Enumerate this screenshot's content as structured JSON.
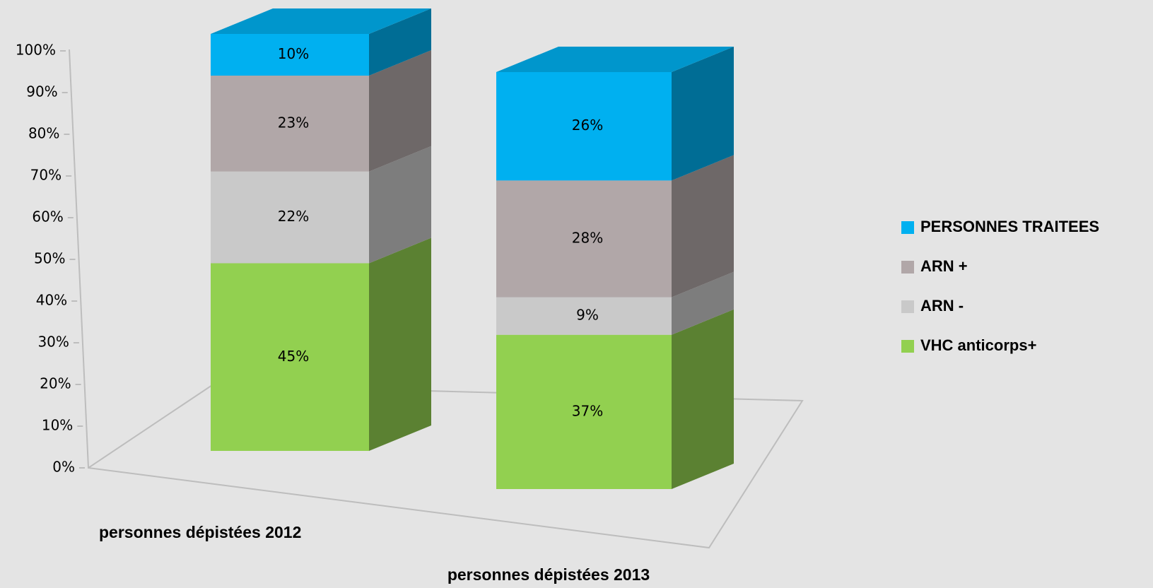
{
  "chart_data": {
    "type": "bar3d_stacked",
    "categories": [
      "personnes dépistées 2012",
      "personnes dépistées 2013"
    ],
    "series": [
      {
        "name": "VHC anticorps+",
        "color": "#92d050",
        "values": [
          45,
          37
        ],
        "value_labels": [
          "45%",
          "37%"
        ]
      },
      {
        "name": "ARN -",
        "color": "#c9c9c9",
        "values": [
          22,
          9
        ],
        "value_labels": [
          "22%",
          "9%"
        ]
      },
      {
        "name": "ARN +",
        "color": "#b1a7a8",
        "values": [
          23,
          28
        ],
        "value_labels": [
          "23%",
          "28%"
        ]
      },
      {
        "name": "PERSONNES TRAITEES",
        "color": "#00b0f0",
        "values": [
          10,
          26
        ],
        "value_labels": [
          "10%",
          "26%"
        ]
      }
    ],
    "ylim": [
      0,
      100
    ],
    "yticks": [
      {
        "value": 0,
        "label": "0%"
      },
      {
        "value": 10,
        "label": "10%"
      },
      {
        "value": 20,
        "label": "20%"
      },
      {
        "value": 30,
        "label": "30%"
      },
      {
        "value": 40,
        "label": "40%"
      },
      {
        "value": 50,
        "label": "50%"
      },
      {
        "value": 60,
        "label": "60%"
      },
      {
        "value": 70,
        "label": "70%"
      },
      {
        "value": 80,
        "label": "80%"
      },
      {
        "value": 90,
        "label": "90%"
      },
      {
        "value": 100,
        "label": "100%"
      }
    ],
    "legend": "right"
  }
}
